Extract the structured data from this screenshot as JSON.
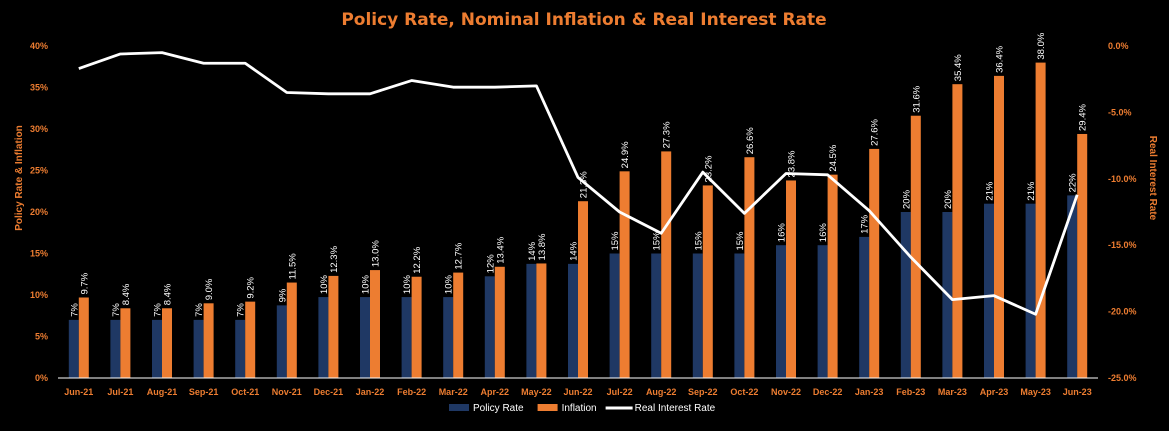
{
  "chart_data": {
    "type": "bar",
    "title": "Policy Rate, Nominal Inflation & Real Interest Rate",
    "ylabel": "Policy Rate & Inflation",
    "y2label": "Real Interest Rate",
    "ylim": [
      0,
      40
    ],
    "y_ticks": [
      "0%",
      "5%",
      "10%",
      "15%",
      "20%",
      "25%",
      "30%",
      "35%",
      "40%"
    ],
    "y2lim": [
      -25,
      0
    ],
    "y2_ticks": [
      "0.0%",
      "-5.0%",
      "-10.0%",
      "-15.0%",
      "-20.0%",
      "-25.0%"
    ],
    "legend_position": "bottom",
    "categories": [
      "Jun-21",
      "Jul-21",
      "Aug-21",
      "Sep-21",
      "Oct-21",
      "Nov-21",
      "Dec-21",
      "Jan-22",
      "Feb-22",
      "Mar-22",
      "Apr-22",
      "May-22",
      "Jun-22",
      "Jul-22",
      "Aug-22",
      "Sep-22",
      "Oct-22",
      "Nov-22",
      "Dec-22",
      "Jan-23",
      "Feb-23",
      "Mar-23",
      "Apr-23",
      "May-23",
      "Jun-23"
    ],
    "series": [
      {
        "name": "Policy Rate",
        "kind": "bar",
        "color": "#1f3864",
        "values": [
          7,
          7,
          7,
          7,
          7,
          8.75,
          9.75,
          9.75,
          9.75,
          9.75,
          12.25,
          13.75,
          13.75,
          15,
          15,
          15,
          15,
          16,
          16,
          17,
          20,
          20,
          21,
          21,
          22
        ],
        "labels": [
          "7%",
          "7%",
          "7%",
          "7%",
          "7%",
          "9%",
          "10%",
          "10%",
          "10%",
          "10%",
          "12%",
          "14%",
          "14%",
          "15%",
          "15%",
          "15%",
          "15%",
          "16%",
          "16%",
          "17%",
          "20%",
          "20%",
          "21%",
          "21%",
          "22%"
        ]
      },
      {
        "name": "Inflation",
        "kind": "bar",
        "color": "#ed7d31",
        "values": [
          9.7,
          8.4,
          8.4,
          9.0,
          9.2,
          11.5,
          12.3,
          13.0,
          12.2,
          12.7,
          13.4,
          13.8,
          21.3,
          24.9,
          27.3,
          23.2,
          26.6,
          23.8,
          24.5,
          27.6,
          31.6,
          35.4,
          36.4,
          38.0,
          29.4
        ],
        "labels": [
          "9.7%",
          "8.4%",
          "8.4%",
          "9.0%",
          "9.2%",
          "11.5%",
          "12.3%",
          "13.0%",
          "12.2%",
          "12.7%",
          "13.4%",
          "13.8%",
          "21.3%",
          "24.9%",
          "27.3%",
          "23.2%",
          "26.6%",
          "23.8%",
          "24.5%",
          "27.6%",
          "31.6%",
          "35.4%",
          "36.4%",
          "38.0%",
          "29.4%"
        ]
      },
      {
        "name": "Real Interest Rate",
        "kind": "line",
        "axis": "secondary",
        "color": "#ffffff",
        "values": [
          -1.7,
          -0.6,
          -0.5,
          -1.3,
          -1.3,
          -3.5,
          -3.6,
          -3.6,
          -2.6,
          -3.1,
          -3.1,
          -3.0,
          -9.9,
          -12.5,
          -14.1,
          -9.5,
          -12.6,
          -9.6,
          -9.7,
          -12.4,
          -15.9,
          -19.1,
          -18.8,
          -20.2,
          -11.2
        ]
      }
    ],
    "colors": {
      "title": "#ed7d31",
      "axis_text": "#ed7d31",
      "axis_line": "#ffffff",
      "background": "#000000"
    }
  }
}
